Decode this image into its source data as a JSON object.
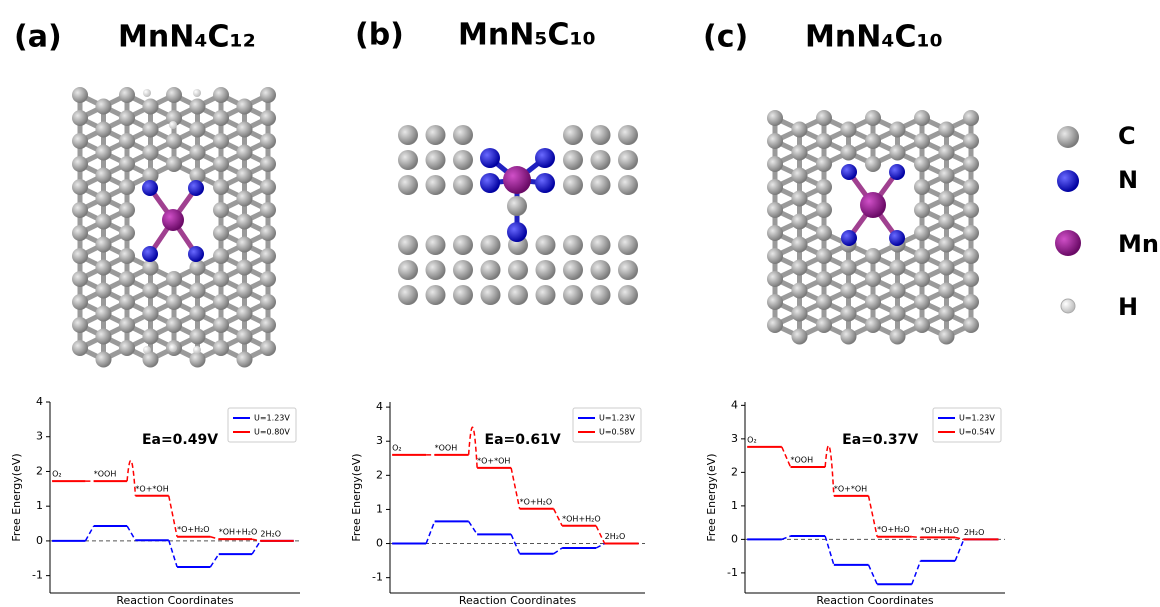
{
  "panels": [
    {
      "label": "(a)",
      "formula": "MnN₄C₁₂"
    },
    {
      "label": "(b)",
      "formula": "MnN₅C₁₀"
    },
    {
      "label": "(c)",
      "formula": "MnN₄C₁₀"
    }
  ],
  "atom_legend": [
    "C",
    "N",
    "Mn",
    "H"
  ],
  "chart_data": [
    {
      "type": "step",
      "ylabel": "Free Energy(eV)",
      "xlabel": "Reaction Coordinates",
      "categories": [
        "O₂",
        "*OOH",
        "*O+*OH",
        "*O+H₂O",
        "*OH+H₂O",
        "2H₂O"
      ],
      "series": [
        {
          "name": "U=1.23V",
          "color": "#0000ff",
          "values": [
            0,
            0.43,
            0.02,
            -0.75,
            -0.38,
            0
          ]
        },
        {
          "name": "U=0.80V",
          "color": "#ff0000",
          "values": [
            1.72,
            1.72,
            1.3,
            0.12,
            0.05,
            0
          ],
          "transition_state": 2.3
        }
      ],
      "annotation": "Ea=0.49V",
      "ylim": [
        -1.5,
        4
      ],
      "yticks": [
        -1,
        0,
        1,
        2,
        3,
        4
      ],
      "legend": "upper right"
    },
    {
      "type": "step",
      "ylabel": "Free Energy(eV)",
      "xlabel": "Reaction Coordinates",
      "categories": [
        "O₂",
        "*OOH",
        "*O+*OH",
        "*O+H₂O",
        "*OH+H₂O",
        "2H₂O"
      ],
      "series": [
        {
          "name": "U=1.23V",
          "color": "#0000ff",
          "values": [
            0,
            0.65,
            0.27,
            -0.3,
            -0.13,
            0
          ]
        },
        {
          "name": "U=0.58V",
          "color": "#ff0000",
          "values": [
            2.6,
            2.6,
            2.22,
            1.02,
            0.52,
            0
          ],
          "transition_state": 3.4
        }
      ],
      "annotation": "Ea=0.61V",
      "ylim": [
        -1.45,
        4.15
      ],
      "yticks": [
        -1,
        0,
        1,
        2,
        3,
        4
      ],
      "legend": "upper right"
    },
    {
      "type": "step",
      "ylabel": "Free Energy(eV)",
      "xlabel": "Reaction Coordinates",
      "categories": [
        "O₂",
        "*OOH",
        "*O+*OH",
        "*O+H₂O",
        "*OH+H₂O",
        "2H₂O"
      ],
      "series": [
        {
          "name": "U=1.23V",
          "color": "#0000ff",
          "values": [
            0,
            0.1,
            -0.76,
            -1.34,
            -0.64,
            0
          ]
        },
        {
          "name": "U=0.54V",
          "color": "#ff0000",
          "values": [
            2.76,
            2.16,
            1.3,
            0.08,
            0.06,
            0
          ],
          "transition_state": 2.75
        }
      ],
      "annotation": "Ea=0.37V",
      "ylim": [
        -1.6,
        4.1
      ],
      "yticks": [
        -1,
        0,
        1,
        2,
        3,
        4
      ],
      "legend": "upper right"
    }
  ]
}
